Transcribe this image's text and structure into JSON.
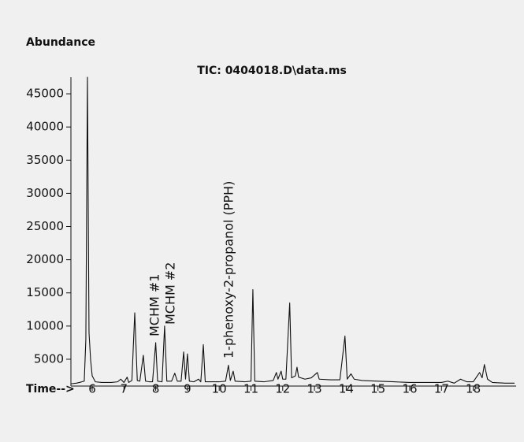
{
  "chart_data": {
    "type": "line",
    "title": "TIC: 0404018.D\\data.ms",
    "ylabel": "Abundance",
    "xlabel": "Time-->",
    "annotations": [
      {
        "text": "MCHM #1",
        "x": 8.0
      },
      {
        "text": "MCHM #2",
        "x": 8.28
      },
      {
        "text": "1-phenoxy-2-propanol (PPH)",
        "x": 10.29
      }
    ],
    "color": "#111111",
    "x": [
      5.33,
      5.5,
      5.6,
      5.75,
      5.8,
      5.85,
      5.9,
      5.95,
      6.0,
      6.1,
      6.3,
      6.6,
      6.8,
      6.9,
      7.0,
      7.1,
      7.15,
      7.25,
      7.34,
      7.42,
      7.5,
      7.61,
      7.68,
      7.8,
      7.9,
      8.0,
      8.06,
      8.2,
      8.28,
      8.35,
      8.5,
      8.6,
      8.68,
      8.8,
      8.88,
      8.94,
      9.0,
      9.06,
      9.2,
      9.35,
      9.42,
      9.5,
      9.56,
      9.8,
      10.0,
      10.2,
      10.29,
      10.35,
      10.44,
      10.5,
      10.8,
      11.0,
      11.06,
      11.12,
      11.4,
      11.7,
      11.8,
      11.85,
      11.95,
      12.0,
      12.1,
      12.22,
      12.28,
      12.4,
      12.45,
      12.5,
      12.7,
      12.9,
      13.09,
      13.15,
      13.5,
      13.8,
      13.96,
      14.03,
      14.15,
      14.25,
      14.5,
      15.0,
      15.5,
      16.0,
      16.5,
      17.0,
      17.2,
      17.4,
      17.6,
      17.8,
      18.0,
      18.2,
      18.28,
      18.35,
      18.45,
      18.6,
      19.0,
      19.3
    ],
    "values": [
      1300,
      1400,
      1500,
      1700,
      8000,
      47500,
      9000,
      4900,
      2500,
      1600,
      1500,
      1500,
      1600,
      2000,
      1500,
      2300,
      1500,
      1800,
      12000,
      1800,
      1700,
      5600,
      1700,
      1600,
      1600,
      7500,
      1700,
      1600,
      10000,
      1700,
      1700,
      2900,
      1700,
      1700,
      6100,
      2000,
      5800,
      1700,
      1600,
      2000,
      1600,
      7200,
      1600,
      1600,
      1600,
      1700,
      4100,
      1800,
      3200,
      1700,
      1600,
      1700,
      15500,
      1700,
      1600,
      1800,
      3000,
      2000,
      3200,
      2000,
      2000,
      13500,
      2200,
      2500,
      3800,
      2300,
      2000,
      2200,
      3000,
      2000,
      1900,
      1900,
      8500,
      2000,
      2800,
      2000,
      1800,
      1700,
      1600,
      1500,
      1500,
      1500,
      1700,
      1400,
      2000,
      1600,
      1600,
      3000,
      2200,
      4200,
      2000,
      1500,
      1400,
      1400
    ],
    "xlim": [
      5.33,
      19.35
    ],
    "ylim": [
      960,
      47500
    ],
    "xticks": [
      6,
      7,
      8,
      9,
      10,
      11,
      12,
      13,
      14,
      15,
      16,
      17,
      18
    ],
    "yticks": [
      5000,
      10000,
      15000,
      20000,
      25000,
      30000,
      35000,
      40000,
      45000
    ]
  }
}
